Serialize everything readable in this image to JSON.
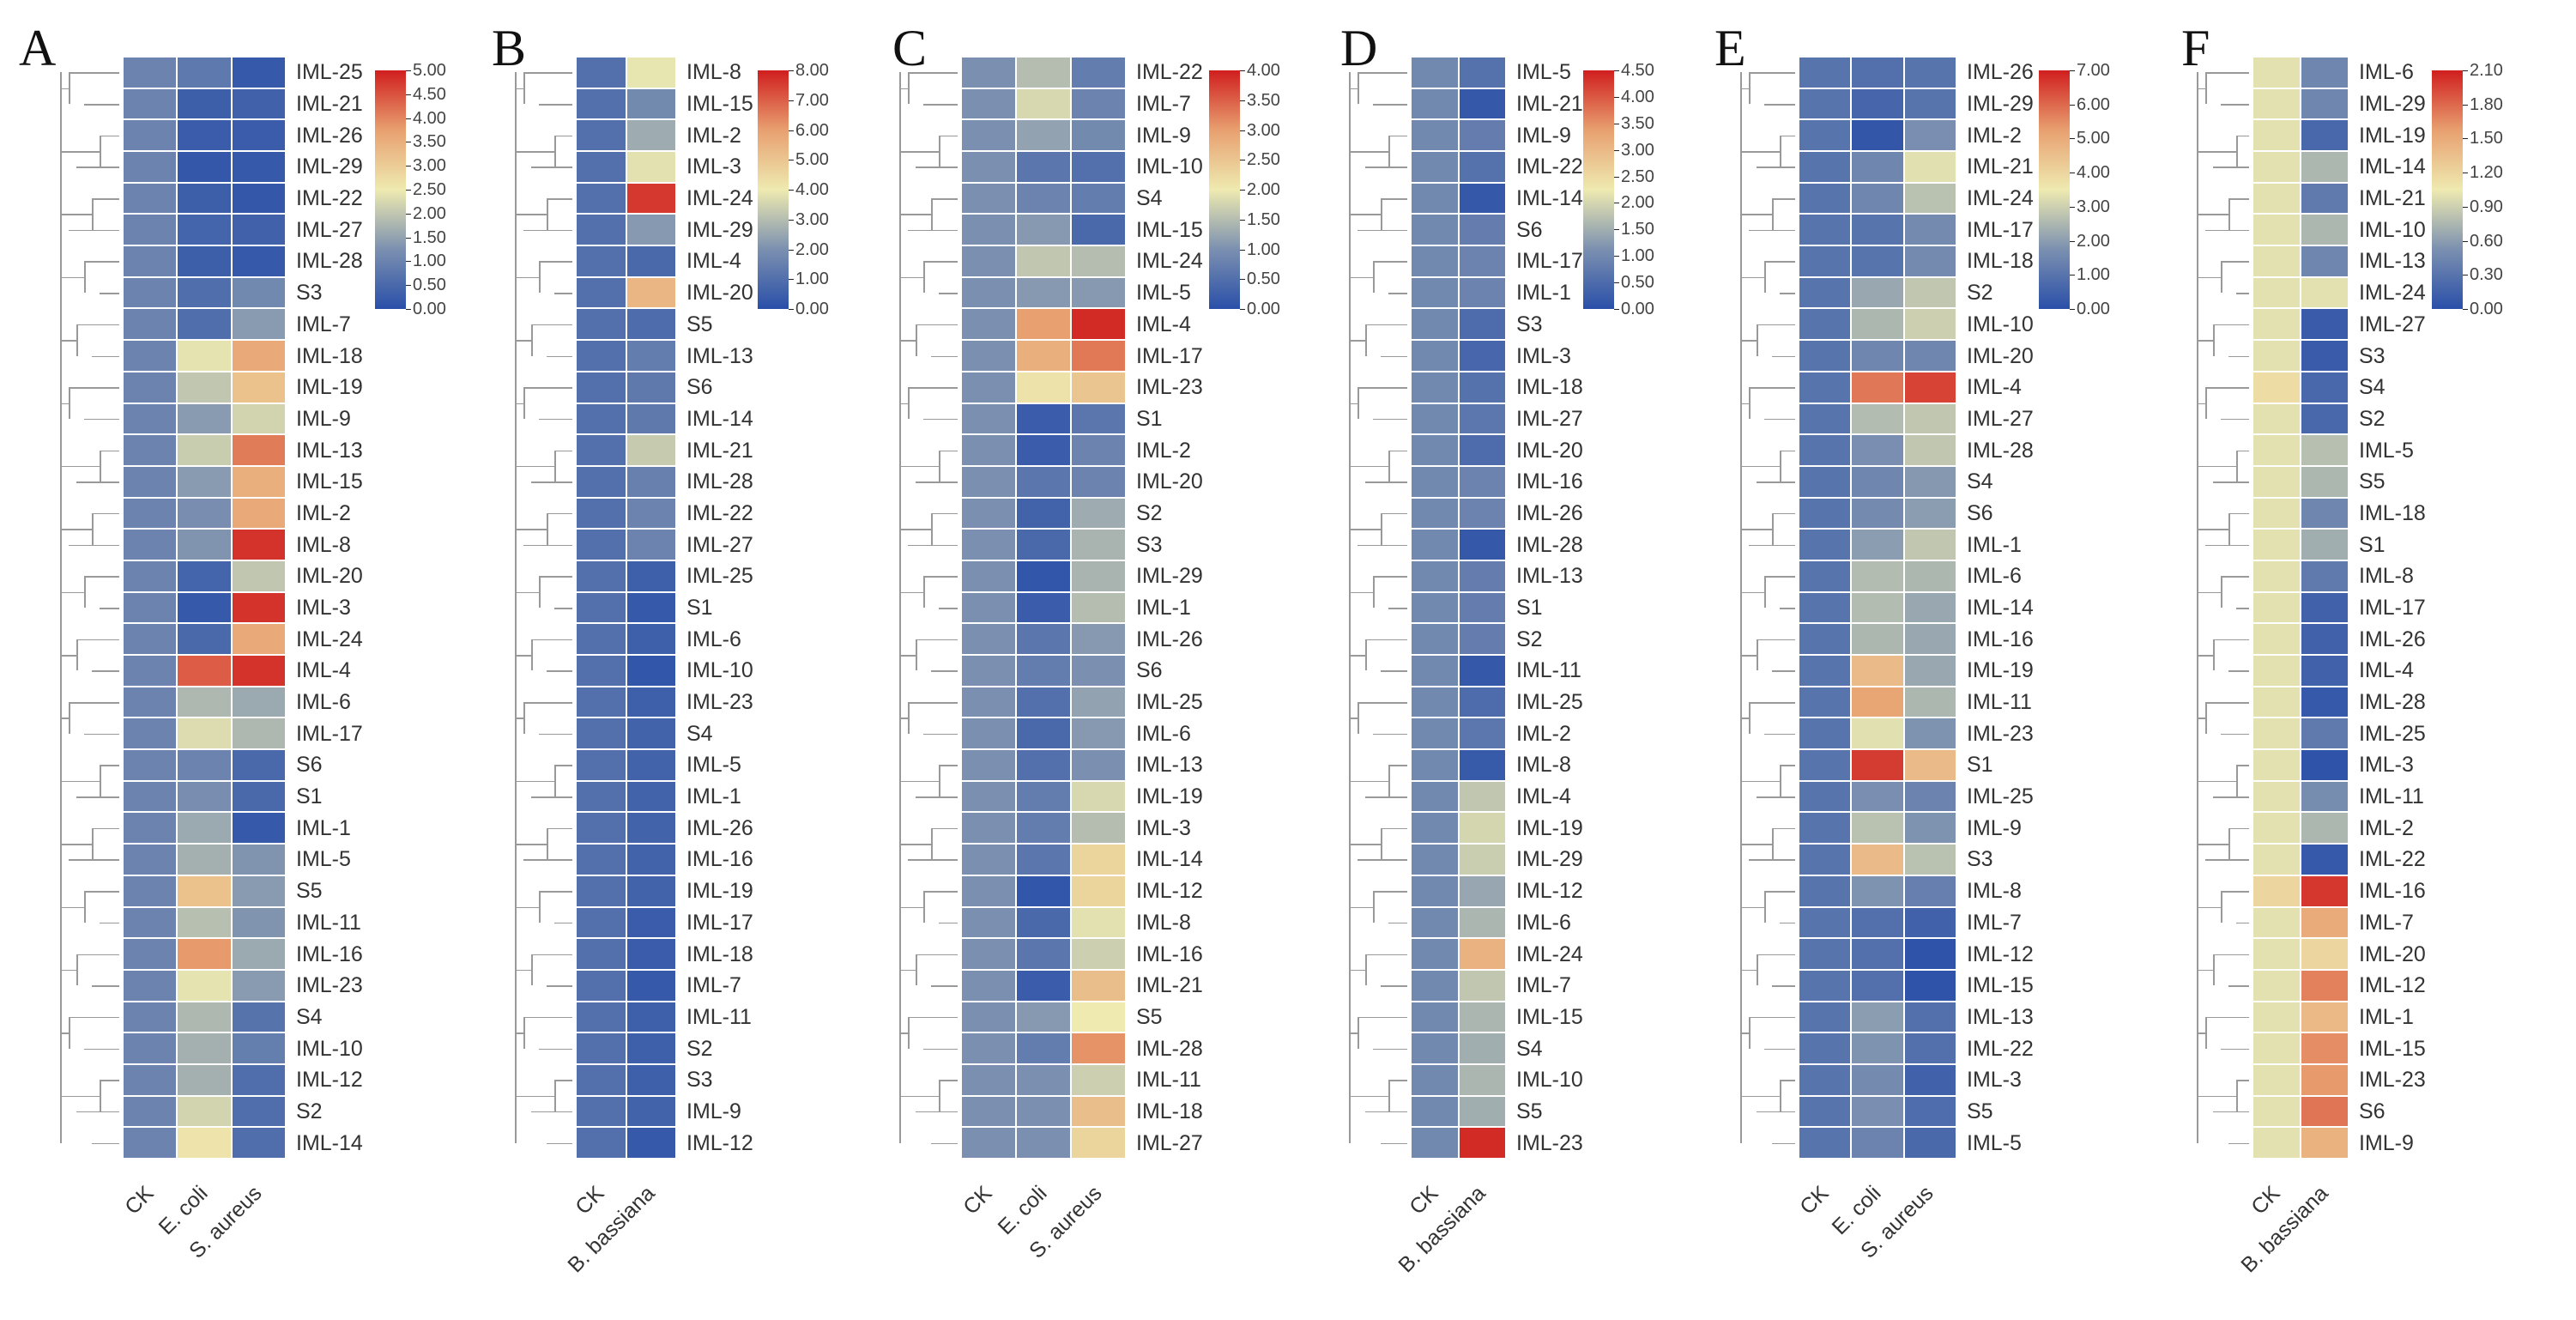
{
  "colormap": {
    "low": "#2a4fa8",
    "mid_low": "#7b90b0",
    "mid": "#eeeab0",
    "mid_high": "#e8a070",
    "high": "#d01e1e"
  },
  "chart_data": [
    {
      "panel": "A",
      "type": "heatmap",
      "columns": [
        "CK",
        "E. coli",
        "S. aureus"
      ],
      "vmin": 0,
      "vmax": 5,
      "legend_ticks": [
        "5.00",
        "4.50",
        "4.00",
        "3.50",
        "3.00",
        "2.50",
        "2.00",
        "1.50",
        "1.00",
        "0.50",
        "0.00"
      ],
      "rows": [
        "IML-25",
        "IML-21",
        "IML-26",
        "IML-29",
        "IML-22",
        "IML-27",
        "IML-28",
        "S3",
        "IML-7",
        "IML-18",
        "IML-19",
        "IML-9",
        "IML-13",
        "IML-15",
        "IML-2",
        "IML-8",
        "IML-20",
        "IML-3",
        "IML-24",
        "IML-4",
        "IML-6",
        "IML-17",
        "S6",
        "S1",
        "IML-1",
        "IML-5",
        "S5",
        "IML-11",
        "IML-16",
        "IML-23",
        "S4",
        "IML-10",
        "IML-12",
        "S2",
        "IML-14"
      ],
      "values": [
        [
          1,
          0.8,
          0.2
        ],
        [
          1,
          0.3,
          0.35
        ],
        [
          1,
          0.25,
          0.25
        ],
        [
          1,
          0.15,
          0.2
        ],
        [
          1,
          0.3,
          0.15
        ],
        [
          1,
          0.4,
          0.35
        ],
        [
          1,
          0.3,
          0.2
        ],
        [
          1,
          0.6,
          1.1
        ],
        [
          1,
          0.6,
          1.4
        ],
        [
          1,
          2.4,
          3.6
        ],
        [
          1,
          2.0,
          3.2
        ],
        [
          1,
          1.4,
          2.2
        ],
        [
          1,
          2.1,
          4.1
        ],
        [
          1,
          1.4,
          3.5
        ],
        [
          1,
          1.2,
          3.6
        ],
        [
          1,
          1.3,
          4.8
        ],
        [
          1,
          0.4,
          2.0
        ],
        [
          1,
          0.2,
          4.8
        ],
        [
          1,
          0.5,
          3.6
        ],
        [
          1,
          4.4,
          4.8
        ],
        [
          1,
          1.8,
          1.6
        ],
        [
          1,
          2.3,
          1.8
        ],
        [
          1,
          1.0,
          0.5
        ],
        [
          1,
          1.2,
          0.5
        ],
        [
          1,
          1.6,
          0.2
        ],
        [
          1,
          1.7,
          1.3
        ],
        [
          1,
          3.2,
          1.4
        ],
        [
          1,
          1.9,
          1.3
        ],
        [
          1,
          3.8,
          1.6
        ],
        [
          1,
          2.4,
          1.4
        ],
        [
          1,
          1.8,
          0.7
        ],
        [
          1,
          1.7,
          0.9
        ],
        [
          1,
          1.7,
          0.6
        ],
        [
          1,
          2.2,
          0.6
        ],
        [
          1,
          2.6,
          0.6
        ]
      ]
    },
    {
      "panel": "B",
      "type": "heatmap",
      "columns": [
        "CK",
        "B. bassiana"
      ],
      "vmin": 0,
      "vmax": 8,
      "legend_ticks": [
        "8.00",
        "7.00",
        "6.00",
        "5.00",
        "4.00",
        "3.00",
        "2.00",
        "1.00",
        "0.00"
      ],
      "rows": [
        "IML-8",
        "IML-15",
        "IML-2",
        "IML-3",
        "IML-24",
        "IML-29",
        "IML-4",
        "IML-20",
        "S5",
        "IML-13",
        "S6",
        "IML-14",
        "IML-21",
        "IML-28",
        "IML-22",
        "IML-27",
        "IML-25",
        "S1",
        "IML-6",
        "IML-10",
        "IML-23",
        "S4",
        "IML-5",
        "IML-1",
        "IML-26",
        "IML-16",
        "IML-19",
        "IML-17",
        "IML-18",
        "IML-7",
        "IML-11",
        "S2",
        "S3",
        "IML-9",
        "IML-12"
      ],
      "values": [
        [
          1,
          3.9
        ],
        [
          1,
          1.8
        ],
        [
          1,
          2.6
        ],
        [
          1,
          3.8
        ],
        [
          1,
          7.6
        ],
        [
          1,
          2.2
        ],
        [
          1,
          0.8
        ],
        [
          1,
          5.4
        ],
        [
          1,
          0.9
        ],
        [
          1,
          1.4
        ],
        [
          1,
          1.3
        ],
        [
          1,
          1.3
        ],
        [
          1,
          3.3
        ],
        [
          1,
          1.5
        ],
        [
          1,
          1.6
        ],
        [
          1,
          1.6
        ],
        [
          1,
          0.5
        ],
        [
          1,
          0.3
        ],
        [
          1,
          0.5
        ],
        [
          1,
          0.2
        ],
        [
          1,
          0.5
        ],
        [
          1,
          0.6
        ],
        [
          1,
          0.6
        ],
        [
          1,
          0.6
        ],
        [
          1,
          0.6
        ],
        [
          1,
          0.6
        ],
        [
          1,
          0.6
        ],
        [
          1,
          0.4
        ],
        [
          1,
          0.4
        ],
        [
          1,
          0.3
        ],
        [
          1,
          0.5
        ],
        [
          1,
          0.5
        ],
        [
          1,
          0.5
        ],
        [
          1,
          0.6
        ],
        [
          1,
          0.3
        ]
      ]
    },
    {
      "panel": "C",
      "type": "heatmap",
      "columns": [
        "CK",
        "E. coli",
        "S. aureus"
      ],
      "vmin": 0,
      "vmax": 4,
      "legend_ticks": [
        "4.00",
        "3.50",
        "3.00",
        "2.50",
        "2.00",
        "1.50",
        "1.00",
        "0.50",
        "0.00"
      ],
      "rows": [
        "IML-22",
        "IML-7",
        "IML-9",
        "IML-10",
        "S4",
        "IML-15",
        "IML-24",
        "IML-5",
        "IML-4",
        "IML-17",
        "IML-23",
        "S1",
        "IML-2",
        "IML-20",
        "S2",
        "S3",
        "IML-29",
        "IML-1",
        "IML-26",
        "S6",
        "IML-25",
        "IML-6",
        "IML-13",
        "IML-19",
        "IML-3",
        "IML-14",
        "IML-12",
        "IML-8",
        "IML-16",
        "IML-21",
        "S5",
        "IML-28",
        "IML-11",
        "IML-18",
        "IML-27"
      ],
      "values": [
        [
          1,
          1.5,
          0.7
        ],
        [
          1,
          1.8,
          0.8
        ],
        [
          1,
          1.2,
          0.9
        ],
        [
          1,
          0.6,
          0.5
        ],
        [
          1,
          0.8,
          0.7
        ],
        [
          1,
          1.1,
          0.4
        ],
        [
          1,
          1.6,
          1.5
        ],
        [
          1,
          1.1,
          1.1
        ],
        [
          1,
          3.0,
          3.9
        ],
        [
          1,
          2.8,
          3.3
        ],
        [
          1,
          2.1,
          2.5
        ],
        [
          1,
          0.2,
          0.6
        ],
        [
          1,
          0.2,
          0.8
        ],
        [
          1,
          0.6,
          0.8
        ],
        [
          1,
          0.3,
          1.3
        ],
        [
          1,
          0.4,
          1.4
        ],
        [
          1,
          0.1,
          1.4
        ],
        [
          1,
          0.2,
          1.5
        ],
        [
          1,
          0.6,
          1.1
        ],
        [
          1,
          0.7,
          1.0
        ],
        [
          1,
          0.5,
          1.2
        ],
        [
          1,
          0.4,
          1.1
        ],
        [
          1,
          0.5,
          1.0
        ],
        [
          1,
          0.7,
          1.8
        ],
        [
          1,
          0.7,
          1.5
        ],
        [
          1,
          0.6,
          2.3
        ],
        [
          1,
          0.1,
          2.3
        ],
        [
          1,
          0.4,
          1.9
        ],
        [
          1,
          0.6,
          1.7
        ],
        [
          1,
          0.2,
          2.6
        ],
        [
          1,
          1.1,
          2.0
        ],
        [
          1,
          0.7,
          3.1
        ],
        [
          1,
          1.0,
          1.7
        ],
        [
          1,
          1.0,
          2.6
        ],
        [
          1,
          1.0,
          2.3
        ]
      ]
    },
    {
      "panel": "D",
      "type": "heatmap",
      "columns": [
        "CK",
        "B. bassiana"
      ],
      "vmin": 0,
      "vmax": 4.5,
      "legend_ticks": [
        "4.50",
        "4.00",
        "3.50",
        "3.00",
        "2.50",
        "2.00",
        "1.50",
        "1.00",
        "0.50",
        "0.00"
      ],
      "rows": [
        "IML-5",
        "IML-21",
        "IML-9",
        "IML-22",
        "IML-14",
        "S6",
        "IML-17",
        "IML-1",
        "S3",
        "IML-3",
        "IML-18",
        "IML-27",
        "IML-20",
        "IML-16",
        "IML-26",
        "IML-28",
        "IML-13",
        "S1",
        "S2",
        "IML-11",
        "IML-25",
        "IML-2",
        "IML-8",
        "IML-4",
        "IML-19",
        "IML-29",
        "IML-12",
        "IML-6",
        "IML-24",
        "IML-7",
        "IML-15",
        "S4",
        "IML-10",
        "S5",
        "IML-23"
      ],
      "values": [
        [
          1,
          0.6
        ],
        [
          1,
          0.15
        ],
        [
          1,
          0.8
        ],
        [
          1,
          0.6
        ],
        [
          1,
          0.15
        ],
        [
          1,
          0.8
        ],
        [
          1,
          0.9
        ],
        [
          1,
          0.9
        ],
        [
          1,
          0.5
        ],
        [
          1,
          0.4
        ],
        [
          1,
          0.6
        ],
        [
          1,
          0.7
        ],
        [
          1,
          0.5
        ],
        [
          1,
          0.9
        ],
        [
          1,
          0.9
        ],
        [
          1,
          0.15
        ],
        [
          1,
          0.8
        ],
        [
          1,
          0.8
        ],
        [
          1,
          0.8
        ],
        [
          1,
          0.15
        ],
        [
          1,
          0.5
        ],
        [
          1,
          0.7
        ],
        [
          1,
          0.2
        ],
        [
          1,
          1.8
        ],
        [
          1,
          2.0
        ],
        [
          1,
          1.9
        ],
        [
          1,
          1.4
        ],
        [
          1,
          1.6
        ],
        [
          1,
          3.1
        ],
        [
          1,
          1.8
        ],
        [
          1,
          1.6
        ],
        [
          1,
          1.5
        ],
        [
          1,
          1.6
        ],
        [
          1,
          1.5
        ],
        [
          1,
          4.4
        ]
      ]
    },
    {
      "panel": "E",
      "type": "heatmap",
      "columns": [
        "CK",
        "E. coli",
        "S. aureus"
      ],
      "vmin": 0,
      "vmax": 7,
      "legend_ticks": [
        "7.00",
        "6.00",
        "5.00",
        "4.00",
        "3.00",
        "2.00",
        "1.00",
        "0.00"
      ],
      "rows": [
        "IML-26",
        "IML-29",
        "IML-2",
        "IML-21",
        "IML-24",
        "IML-17",
        "IML-18",
        "S2",
        "IML-10",
        "IML-20",
        "IML-4",
        "IML-27",
        "IML-28",
        "S4",
        "S6",
        "IML-1",
        "IML-6",
        "IML-14",
        "IML-16",
        "IML-19",
        "IML-11",
        "IML-23",
        "S1",
        "IML-25",
        "IML-9",
        "S3",
        "IML-8",
        "IML-7",
        "IML-12",
        "IML-15",
        "IML-13",
        "IML-22",
        "IML-3",
        "S5",
        "IML-5"
      ],
      "values": [
        [
          1,
          0.9,
          1.0
        ],
        [
          1,
          0.6,
          1.0
        ],
        [
          1,
          0.2,
          1.7
        ],
        [
          1,
          1.5,
          3.3
        ],
        [
          1,
          1.5,
          2.7
        ],
        [
          1,
          1.0,
          1.6
        ],
        [
          1,
          1.0,
          1.6
        ],
        [
          1,
          2.2,
          2.8
        ],
        [
          1,
          2.5,
          3.0
        ],
        [
          1,
          1.5,
          1.5
        ],
        [
          1,
          5.8,
          6.5
        ],
        [
          1,
          2.6,
          2.8
        ],
        [
          1,
          1.7,
          2.8
        ],
        [
          1,
          1.5,
          1.9
        ],
        [
          1,
          1.6,
          2.0
        ],
        [
          1,
          2.0,
          2.8
        ],
        [
          1,
          2.6,
          2.5
        ],
        [
          1,
          2.6,
          2.2
        ],
        [
          1,
          2.5,
          2.2
        ],
        [
          1,
          4.6,
          2.2
        ],
        [
          1,
          5.1,
          2.5
        ],
        [
          1,
          3.3,
          1.8
        ],
        [
          1,
          6.6,
          4.6
        ],
        [
          1,
          1.7,
          1.4
        ],
        [
          1,
          2.7,
          1.8
        ],
        [
          1,
          4.6,
          2.7
        ],
        [
          1,
          1.8,
          1.3
        ],
        [
          1,
          0.9,
          0.5
        ],
        [
          1,
          0.9,
          0.1
        ],
        [
          1,
          0.9,
          0.1
        ],
        [
          1,
          2.0,
          0.9
        ],
        [
          1,
          1.8,
          0.9
        ],
        [
          1,
          1.6,
          0.5
        ],
        [
          1,
          1.7,
          0.8
        ],
        [
          1,
          1.4,
          0.7
        ]
      ]
    },
    {
      "panel": "F",
      "type": "heatmap",
      "columns": [
        "CK",
        "B. bassiana"
      ],
      "vmin": 0,
      "vmax": 2.1,
      "legend_ticks": [
        "2.10",
        "1.80",
        "1.50",
        "1.20",
        "0.90",
        "0.60",
        "0.30",
        "0.00"
      ],
      "rows": [
        "IML-6",
        "IML-29",
        "IML-19",
        "IML-14",
        "IML-21",
        "IML-10",
        "IML-13",
        "IML-24",
        "IML-27",
        "S3",
        "S4",
        "S2",
        "IML-5",
        "S5",
        "IML-18",
        "S1",
        "IML-8",
        "IML-17",
        "IML-26",
        "IML-4",
        "IML-28",
        "IML-25",
        "IML-3",
        "IML-11",
        "IML-2",
        "IML-22",
        "IML-16",
        "IML-7",
        "IML-20",
        "IML-12",
        "IML-1",
        "IML-15",
        "IML-23",
        "S6",
        "IML-9"
      ],
      "values": [
        [
          1,
          0.45
        ],
        [
          1,
          0.45
        ],
        [
          1,
          0.2
        ],
        [
          1,
          0.75
        ],
        [
          1,
          0.35
        ],
        [
          1,
          0.75
        ],
        [
          1,
          0.45
        ],
        [
          1,
          1.0
        ],
        [
          1,
          0.1
        ],
        [
          1,
          0.1
        ],
        [
          1.15,
          0.2
        ],
        [
          1,
          0.2
        ],
        [
          1,
          0.8
        ],
        [
          1,
          0.75
        ],
        [
          1,
          0.45
        ],
        [
          1,
          0.7
        ],
        [
          1,
          0.35
        ],
        [
          1,
          0.15
        ],
        [
          1,
          0.15
        ],
        [
          1,
          0.15
        ],
        [
          1,
          0.08
        ],
        [
          1,
          0.35
        ],
        [
          1,
          0.03
        ],
        [
          1,
          0.5
        ],
        [
          1,
          0.75
        ],
        [
          1,
          0.08
        ],
        [
          1.2,
          2.0
        ],
        [
          1,
          1.5
        ],
        [
          1,
          1.2
        ],
        [
          1,
          1.7
        ],
        [
          1,
          1.4
        ],
        [
          1,
          1.65
        ],
        [
          1,
          1.6
        ],
        [
          1,
          1.75
        ],
        [
          1,
          1.45
        ]
      ]
    }
  ]
}
